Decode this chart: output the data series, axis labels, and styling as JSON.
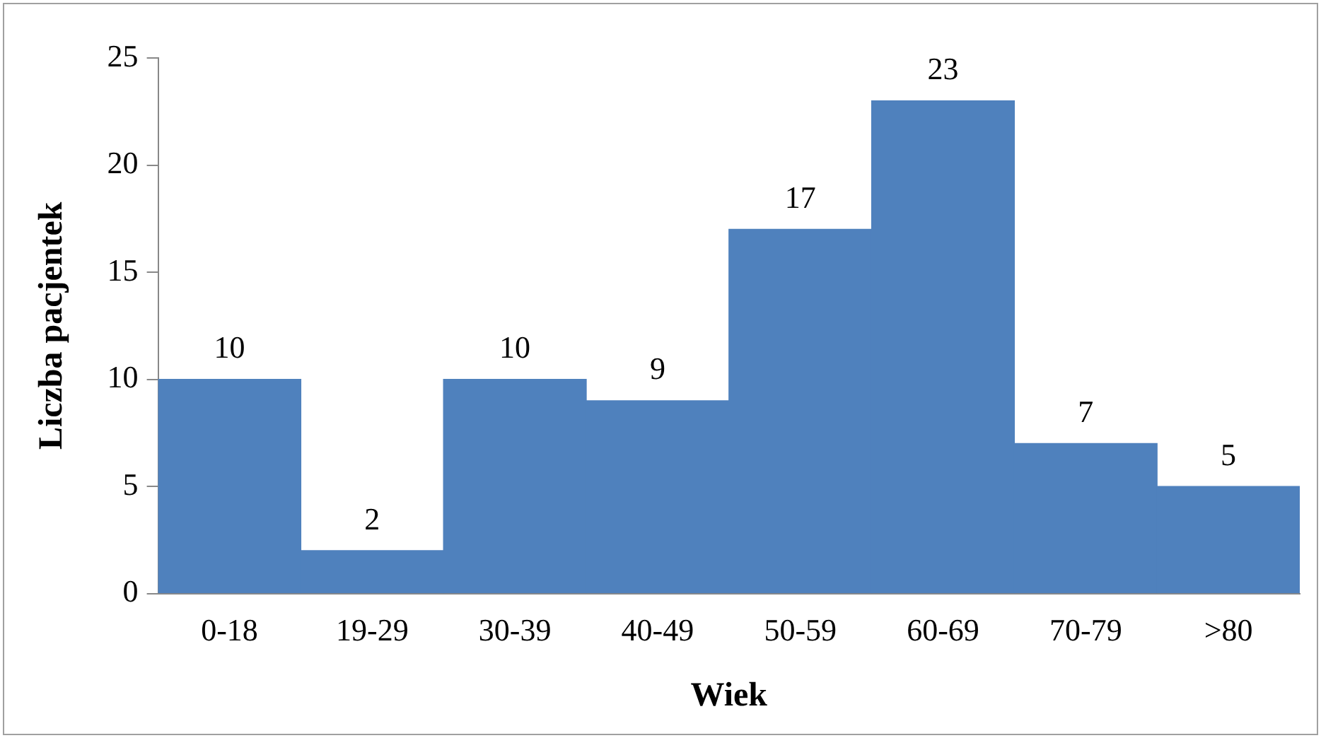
{
  "chart_data": {
    "type": "bar",
    "xlabel": "Wiek",
    "ylabel": "Liczba pacjentek",
    "categories": [
      "0-18",
      "19-29",
      "30-39",
      "40-49",
      "50-59",
      "60-69",
      "70-79",
      ">80"
    ],
    "values": [
      10,
      2,
      10,
      9,
      17,
      23,
      7,
      5
    ],
    "color": "#4f81bd",
    "ylim": [
      0,
      25
    ],
    "yticks": [
      0,
      5,
      10,
      15,
      20,
      25
    ],
    "grid": false,
    "legend": false,
    "data_labels": true
  }
}
